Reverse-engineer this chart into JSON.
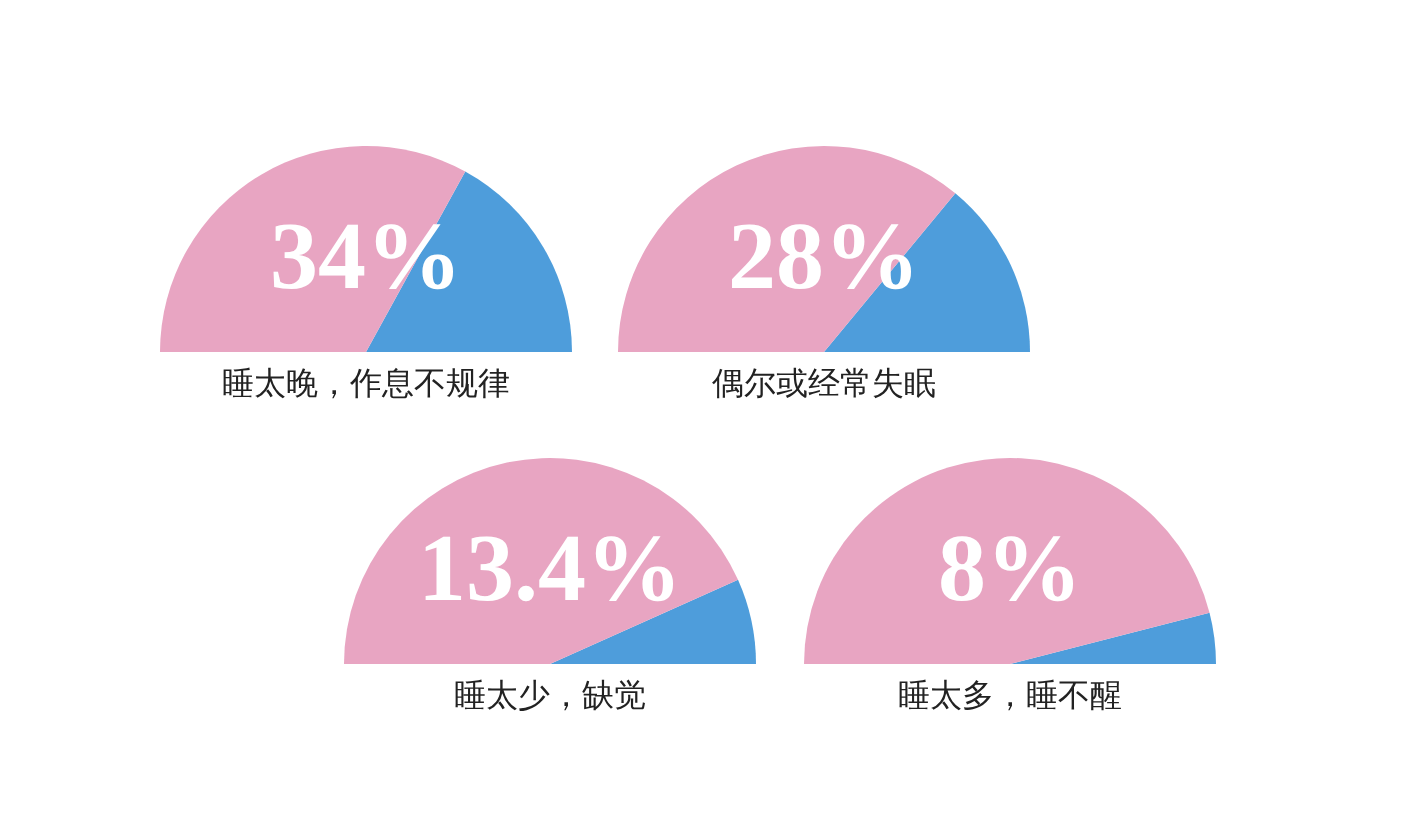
{
  "chart_data": [
    {
      "type": "pie",
      "title": "睡太晚，作息不规律",
      "categories": [
        null,
        null
      ],
      "values": [
        34,
        66
      ],
      "colors": [
        "#4e9ddb",
        "#e8a5c2"
      ],
      "annotations": [
        "34%"
      ]
    },
    {
      "type": "pie",
      "title": "偶尔或经常失眠",
      "categories": [
        null,
        null
      ],
      "values": [
        28,
        72
      ],
      "colors": [
        "#4e9ddb",
        "#e8a5c2"
      ],
      "annotations": [
        "28%"
      ]
    },
    {
      "type": "pie",
      "title": "睡太少，缺觉",
      "categories": [
        null,
        null
      ],
      "values": [
        13.4,
        86.6
      ],
      "colors": [
        "#4e9ddb",
        "#e8a5c2"
      ],
      "annotations": [
        "13.4%"
      ]
    },
    {
      "type": "pie",
      "title": "睡太多，睡不醒",
      "categories": [
        null,
        null
      ],
      "values": [
        8,
        92
      ],
      "colors": [
        "#4e9ddb",
        "#e8a5c2"
      ],
      "annotations": [
        "8%"
      ]
    }
  ]
}
